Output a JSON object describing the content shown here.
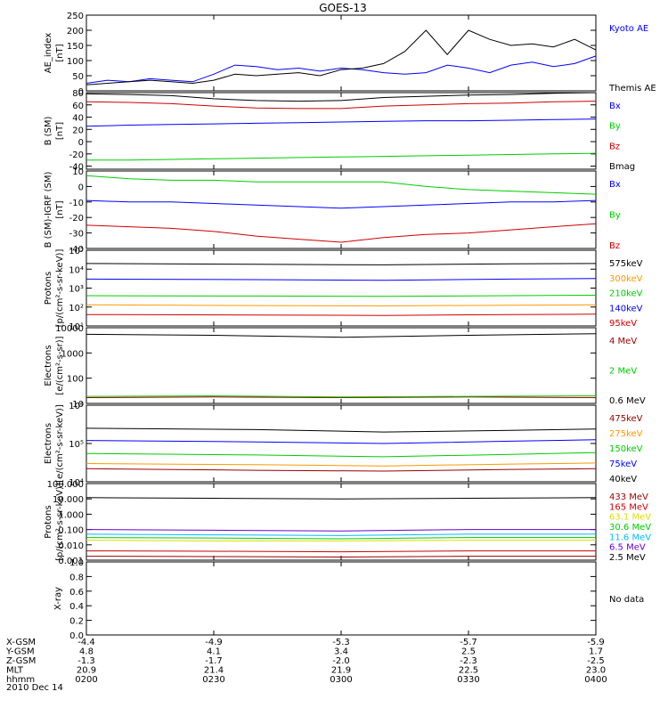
{
  "title": "GOES-13",
  "x_axis": {
    "rows": [
      {
        "label": "X-GSM",
        "values": [
          "-4.4",
          "-4.9",
          "-5.3",
          "-5.7",
          "-5.9"
        ]
      },
      {
        "label": "Y-GSM",
        "values": [
          "4.8",
          "4.1",
          "3.4",
          "2.5",
          "1.7"
        ]
      },
      {
        "label": "Z-GSM",
        "values": [
          "-1.3",
          "-1.7",
          "-2.0",
          "-2.3",
          "-2.5"
        ]
      },
      {
        "label": "MLT",
        "values": [
          "20.9",
          "21.4",
          "21.9",
          "22.5",
          "23.0"
        ]
      },
      {
        "label": "hhmm",
        "values": [
          "0200",
          "0230",
          "0300",
          "0330",
          "0400"
        ]
      }
    ],
    "date": "2010 Dec 14",
    "times": [
      "02:00",
      "02:30",
      "03:00",
      "03:30",
      "04:00"
    ]
  },
  "colors": {
    "black": "#000000",
    "blue": "#0000ff",
    "green": "#00cc00",
    "red": "#cc0000",
    "orange": "#ff9900",
    "yellow": "#dddd00",
    "cyan": "#00bbff",
    "purple": "#6600cc",
    "dkred": "#990000"
  },
  "chart_data": [
    {
      "id": "ae",
      "type": "line",
      "ylabel": [
        "AE_index",
        "[nT]"
      ],
      "scale": "linear",
      "ylim": [
        0,
        250
      ],
      "ticks": [
        {
          "v": 0,
          "t": "0"
        },
        {
          "v": 50,
          "t": "50"
        },
        {
          "v": 100,
          "t": "100"
        },
        {
          "v": 150,
          "t": "150"
        },
        {
          "v": 200,
          "t": "200"
        },
        {
          "v": 250,
          "t": "250"
        }
      ],
      "x": [
        0,
        5,
        10,
        15,
        20,
        25,
        30,
        35,
        40,
        45,
        50,
        55,
        60,
        65,
        70,
        75,
        80,
        85,
        90,
        95,
        100,
        105,
        110,
        115,
        120
      ],
      "series": [
        {
          "name": "Kyoto AE",
          "color": "blue",
          "values": [
            25,
            35,
            30,
            40,
            35,
            30,
            55,
            85,
            80,
            70,
            75,
            65,
            75,
            70,
            60,
            55,
            60,
            85,
            75,
            60,
            85,
            95,
            80,
            90,
            115
          ]
        },
        {
          "name": "Themis AE",
          "color": "black",
          "values": [
            20,
            25,
            30,
            35,
            30,
            25,
            35,
            55,
            50,
            55,
            60,
            50,
            70,
            75,
            90,
            130,
            200,
            120,
            200,
            170,
            150,
            155,
            145,
            170,
            135
          ]
        }
      ]
    },
    {
      "id": "bsm",
      "type": "line",
      "ylabel": [
        "B (SM)",
        "[nT]"
      ],
      "scale": "linear",
      "ylim": [
        -45,
        80
      ],
      "ticks": [
        {
          "v": -40,
          "t": "-40"
        },
        {
          "v": -20,
          "t": "-20"
        },
        {
          "v": 0,
          "t": "0"
        },
        {
          "v": 20,
          "t": "20"
        },
        {
          "v": 40,
          "t": "40"
        },
        {
          "v": 60,
          "t": "60"
        },
        {
          "v": 80,
          "t": "80"
        }
      ],
      "x": [
        0,
        10,
        20,
        30,
        40,
        50,
        60,
        70,
        80,
        90,
        100,
        110,
        120
      ],
      "series": [
        {
          "name": "Bx",
          "color": "blue",
          "values": [
            25,
            27,
            28,
            29,
            30,
            31,
            32,
            33,
            34,
            34,
            35,
            36,
            37
          ]
        },
        {
          "name": "By",
          "color": "green",
          "values": [
            -30,
            -30,
            -29,
            -28,
            -27,
            -26,
            -25,
            -24,
            -23,
            -22,
            -21,
            -20,
            -19
          ]
        },
        {
          "name": "Bz",
          "color": "red",
          "values": [
            65,
            64,
            62,
            58,
            55,
            54,
            54,
            58,
            60,
            62,
            63,
            65,
            66
          ]
        },
        {
          "name": "Bmag",
          "color": "black",
          "values": [
            78,
            77,
            75,
            70,
            67,
            66,
            67,
            72,
            74,
            76,
            77,
            79,
            80
          ]
        }
      ]
    },
    {
      "id": "bigrf",
      "type": "line",
      "ylabel": [
        "B (SM)-IGRF (SM)",
        "[nT]"
      ],
      "scale": "linear",
      "ylim": [
        -40,
        10
      ],
      "ticks": [
        {
          "v": -40,
          "t": "-40"
        },
        {
          "v": -30,
          "t": "-30"
        },
        {
          "v": -20,
          "t": "-20"
        },
        {
          "v": -10,
          "t": "-10"
        },
        {
          "v": 0,
          "t": "0"
        },
        {
          "v": 10,
          "t": "10"
        }
      ],
      "x": [
        0,
        10,
        20,
        30,
        40,
        50,
        60,
        70,
        80,
        90,
        100,
        110,
        120
      ],
      "series": [
        {
          "name": "Bx",
          "color": "blue",
          "values": [
            -9,
            -10,
            -10,
            -11,
            -12,
            -13,
            -14,
            -13,
            -12,
            -11,
            -10,
            -10,
            -9
          ]
        },
        {
          "name": "By",
          "color": "green",
          "values": [
            7,
            5,
            4,
            4,
            3,
            3,
            3,
            3,
            0,
            -2,
            -3,
            -4,
            -5
          ]
        },
        {
          "name": "Bz",
          "color": "red",
          "values": [
            -25,
            -26,
            -27,
            -29,
            -32,
            -34,
            -36,
            -33,
            -31,
            -30,
            -28,
            -26,
            -24
          ]
        }
      ]
    },
    {
      "id": "protons_lo",
      "type": "line",
      "ylabel": [
        "Protons",
        "[p/(cm²-s-sr-keV)]"
      ],
      "scale": "log",
      "ylim": [
        10,
        100000
      ],
      "ticks": [
        {
          "v": 10,
          "t": "10¹"
        },
        {
          "v": 100,
          "t": "10²"
        },
        {
          "v": 1000,
          "t": "10³"
        },
        {
          "v": 10000,
          "t": "10⁴"
        },
        {
          "v": 100000,
          "t": "10⁵"
        }
      ],
      "x": [
        0,
        40,
        70,
        100,
        120
      ],
      "series": [
        {
          "name": "575keV",
          "color": "black",
          "values": [
            20000,
            18000,
            17000,
            19000,
            20000
          ]
        },
        {
          "name": "300keV",
          "color": "orange",
          "values": [
            130,
            120,
            115,
            125,
            130
          ]
        },
        {
          "name": "210keV",
          "color": "green",
          "values": [
            400,
            380,
            370,
            400,
            420
          ]
        },
        {
          "name": "140keV",
          "color": "blue",
          "values": [
            3000,
            2800,
            2600,
            3000,
            3200
          ]
        },
        {
          "name": "95keV",
          "color": "red",
          "values": [
            40,
            38,
            36,
            40,
            42
          ]
        }
      ]
    },
    {
      "id": "electrons_hi",
      "type": "line",
      "ylabel": [
        "Electrons",
        "[e/(cm²-s-sr)]"
      ],
      "scale": "log",
      "ylim": [
        10,
        10000
      ],
      "ticks": [
        {
          "v": 10,
          "t": "10"
        },
        {
          "v": 100,
          "t": "100"
        },
        {
          "v": 1000,
          "t": "1000"
        },
        {
          "v": 10000,
          "t": "10000"
        }
      ],
      "x": [
        0,
        30,
        60,
        90,
        120
      ],
      "series": [
        {
          "name": "4 MeV",
          "color": "dkred",
          "values": [
            17,
            18,
            17,
            18,
            17
          ]
        },
        {
          "name": "2 MeV",
          "color": "green",
          "values": [
            19,
            20,
            18,
            19,
            20
          ]
        },
        {
          "name": "0.6 MeV",
          "color": "black",
          "values": [
            5500,
            5000,
            4200,
            5000,
            5800
          ]
        }
      ]
    },
    {
      "id": "electrons_lo",
      "type": "line",
      "ylabel": [
        "Electrons",
        "[e/(cm²-s-sr-keV)]"
      ],
      "scale": "log",
      "ylim": [
        10000,
        1000000
      ],
      "ticks": [
        {
          "v": 10000,
          "t": "10⁴"
        },
        {
          "v": 100000,
          "t": "10⁵"
        },
        {
          "v": 1000000,
          "t": "10⁶"
        }
      ],
      "x": [
        0,
        40,
        70,
        100,
        120
      ],
      "series": [
        {
          "name": "475keV",
          "color": "dkred",
          "values": [
            22000,
            20000,
            19000,
            21000,
            22000
          ]
        },
        {
          "name": "275keV",
          "color": "orange",
          "values": [
            30000,
            28000,
            26000,
            29000,
            31000
          ]
        },
        {
          "name": "150keV",
          "color": "green",
          "values": [
            55000,
            50000,
            45000,
            52000,
            58000
          ]
        },
        {
          "name": "75keV",
          "color": "blue",
          "values": [
            120000,
            110000,
            100000,
            115000,
            125000
          ]
        },
        {
          "name": "40keV",
          "color": "black",
          "values": [
            250000,
            230000,
            200000,
            220000,
            240000
          ]
        }
      ]
    },
    {
      "id": "protons_hi",
      "type": "line",
      "ylabel": [
        "Protons",
        "[p/(cm²-s-sr-keV)]"
      ],
      "scale": "log",
      "ylim": [
        0.001,
        100
      ],
      "ticks": [
        {
          "v": 0.001,
          "t": "0.001"
        },
        {
          "v": 0.01,
          "t": "0.010"
        },
        {
          "v": 0.1,
          "t": "0.100"
        },
        {
          "v": 1,
          "t": "1.000"
        },
        {
          "v": 10,
          "t": "10.000"
        },
        {
          "v": 100,
          "t": "100.000"
        }
      ],
      "x": [
        0,
        30,
        60,
        90,
        120
      ],
      "series": [
        {
          "name": "433 MeV",
          "color": "dkred",
          "values": [
            0.0018,
            0.0017,
            0.0016,
            0.0018,
            0.0018
          ]
        },
        {
          "name": "165 MeV",
          "color": "red",
          "values": [
            0.004,
            0.0038,
            0.0035,
            0.004,
            0.004
          ]
        },
        {
          "name": "63.1 MeV",
          "color": "yellow",
          "values": [
            0.02,
            0.018,
            0.018,
            0.02,
            0.02
          ]
        },
        {
          "name": "30.6 MeV",
          "color": "green",
          "values": [
            0.03,
            0.028,
            0.025,
            0.03,
            0.03
          ]
        },
        {
          "name": "11.6 MeV",
          "color": "cyan",
          "values": [
            0.05,
            0.045,
            0.04,
            0.05,
            0.05
          ]
        },
        {
          "name": "6.5 MeV",
          "color": "purple",
          "values": [
            0.1,
            0.09,
            0.08,
            0.1,
            0.1
          ]
        },
        {
          "name": "2.5 MeV",
          "color": "black",
          "values": [
            12,
            11,
            10,
            11,
            12
          ]
        }
      ]
    },
    {
      "id": "xray",
      "type": "line",
      "ylabel": [
        "X-ray"
      ],
      "scale": "linear",
      "ylim": [
        0,
        1
      ],
      "ticks": [
        {
          "v": 0,
          "t": "0.0"
        },
        {
          "v": 0.2,
          "t": "0.2"
        },
        {
          "v": 0.4,
          "t": "0.4"
        },
        {
          "v": 0.6,
          "t": "0.6"
        },
        {
          "v": 0.8,
          "t": "0.8"
        },
        {
          "v": 1,
          "t": "1.0"
        }
      ],
      "x": [],
      "series": [],
      "note": "No data"
    }
  ]
}
